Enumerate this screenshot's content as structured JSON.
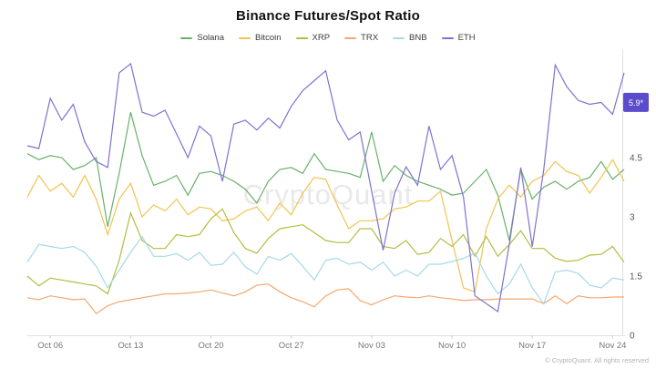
{
  "title": "Binance Futures/Spot Ratio",
  "watermark": "CryptoQuant",
  "footer": "© CryptoQuant. All rights reserved",
  "badge": {
    "label": "5.9*",
    "value": 5.9,
    "color": "#5b4ccc",
    "text_color": "#ffffff"
  },
  "axis_color": "#e0e0e0",
  "tick_text_color": "#777777",
  "chart_data": {
    "type": "line",
    "title": "Binance Futures/Spot Ratio",
    "xlabel": "",
    "ylabel": "",
    "ylim": [
      0,
      7.0
    ],
    "grid": false,
    "legend_position": "top-center",
    "y_ticks": [
      0,
      1.5,
      3,
      4.5
    ],
    "y_tick_labels": [
      "0",
      "1.5",
      "3",
      "4.5"
    ],
    "x": [
      "Oct 04",
      "Oct 05",
      "Oct 06",
      "Oct 07",
      "Oct 08",
      "Oct 09",
      "Oct 10",
      "Oct 11",
      "Oct 12",
      "Oct 13",
      "Oct 14",
      "Oct 15",
      "Oct 16",
      "Oct 17",
      "Oct 18",
      "Oct 19",
      "Oct 20",
      "Oct 21",
      "Oct 22",
      "Oct 23",
      "Oct 24",
      "Oct 25",
      "Oct 26",
      "Oct 27",
      "Oct 28",
      "Oct 29",
      "Oct 30",
      "Oct 31",
      "Nov 01",
      "Nov 02",
      "Nov 03",
      "Nov 04",
      "Nov 05",
      "Nov 06",
      "Nov 07",
      "Nov 08",
      "Nov 09",
      "Nov 10",
      "Nov 11",
      "Nov 12",
      "Nov 13",
      "Nov 14",
      "Nov 15",
      "Nov 16",
      "Nov 17",
      "Nov 18",
      "Nov 19",
      "Nov 20",
      "Nov 21",
      "Nov 22",
      "Nov 23",
      "Nov 24",
      "Nov 25"
    ],
    "tick_indices": [
      2,
      9,
      16,
      23,
      30,
      37,
      44,
      51
    ],
    "series": [
      {
        "name": "Solana",
        "color": "#67b168",
        "values": [
          4.6,
          4.45,
          4.55,
          4.5,
          4.2,
          4.3,
          4.5,
          2.75,
          4.1,
          5.65,
          4.55,
          3.8,
          3.9,
          4.05,
          3.55,
          4.1,
          4.15,
          4.05,
          3.9,
          3.7,
          3.35,
          3.9,
          4.2,
          4.25,
          4.1,
          4.6,
          4.2,
          4.15,
          4.1,
          4.0,
          5.15,
          3.9,
          4.3,
          4.05,
          3.9,
          3.8,
          3.7,
          3.55,
          3.6,
          3.9,
          4.2,
          3.55,
          2.4,
          4.2,
          3.45,
          3.75,
          3.9,
          3.7,
          3.9,
          4.0,
          4.4,
          3.95,
          4.2
        ]
      },
      {
        "name": "Bitcoin",
        "color": "#f1c350",
        "values": [
          3.5,
          4.05,
          3.65,
          3.85,
          3.5,
          4.05,
          3.45,
          2.55,
          3.45,
          3.85,
          3.0,
          3.3,
          3.15,
          3.45,
          3.05,
          3.25,
          3.2,
          2.9,
          2.95,
          3.15,
          3.25,
          2.9,
          3.35,
          3.05,
          3.6,
          4.0,
          3.95,
          3.3,
          2.7,
          2.9,
          2.9,
          2.95,
          3.2,
          3.25,
          3.4,
          3.4,
          3.65,
          2.4,
          1.2,
          1.1,
          2.7,
          3.45,
          3.8,
          3.5,
          3.9,
          4.05,
          4.4,
          4.15,
          4.05,
          3.6,
          4.0,
          4.45,
          3.9
        ]
      },
      {
        "name": "XRP",
        "color": "#b3bc41",
        "values": [
          1.5,
          1.25,
          1.45,
          1.4,
          1.35,
          1.3,
          1.25,
          1.05,
          1.9,
          3.1,
          2.4,
          2.2,
          2.2,
          2.55,
          2.5,
          2.55,
          2.95,
          3.2,
          2.6,
          2.2,
          2.08,
          2.45,
          2.7,
          2.75,
          2.8,
          2.6,
          2.4,
          2.35,
          2.35,
          2.7,
          2.7,
          2.25,
          2.2,
          2.4,
          2.05,
          2.1,
          2.45,
          2.25,
          2.55,
          2.0,
          2.5,
          2.0,
          2.3,
          2.65,
          2.2,
          2.2,
          1.95,
          1.87,
          1.9,
          2.03,
          2.05,
          2.25,
          1.85
        ]
      },
      {
        "name": "TRX",
        "color": "#f3a96e",
        "values": [
          0.95,
          0.9,
          1.0,
          0.95,
          0.9,
          0.92,
          0.55,
          0.75,
          0.85,
          0.9,
          0.95,
          1.0,
          1.05,
          1.05,
          1.07,
          1.1,
          1.15,
          1.07,
          1.0,
          1.1,
          1.27,
          1.3,
          1.1,
          0.95,
          0.85,
          0.72,
          1.0,
          1.15,
          1.18,
          0.88,
          0.77,
          0.9,
          1.0,
          0.97,
          0.95,
          1.0,
          0.95,
          0.92,
          0.88,
          0.9,
          0.9,
          0.92,
          0.92,
          0.92,
          0.92,
          0.8,
          1.0,
          0.8,
          1.0,
          0.95,
          0.95,
          0.97,
          0.97
        ]
      },
      {
        "name": "BNB",
        "color": "#a6d9e8",
        "values": [
          1.85,
          2.3,
          2.25,
          2.2,
          2.25,
          2.1,
          1.75,
          1.2,
          1.65,
          2.1,
          2.5,
          2.0,
          2.0,
          2.07,
          1.9,
          2.1,
          1.77,
          1.8,
          2.1,
          1.73,
          1.55,
          2.0,
          1.9,
          2.07,
          1.75,
          1.4,
          1.9,
          1.95,
          1.8,
          1.85,
          1.65,
          1.85,
          1.5,
          1.65,
          1.5,
          1.8,
          1.8,
          1.87,
          1.95,
          2.08,
          1.5,
          1.05,
          1.3,
          1.8,
          1.2,
          0.8,
          1.6,
          1.65,
          1.57,
          1.27,
          1.2,
          1.45,
          1.4
        ]
      },
      {
        "name": "ETH",
        "color": "#7e72d2",
        "values": [
          4.8,
          4.73,
          6.0,
          5.45,
          5.85,
          4.9,
          4.4,
          4.25,
          6.65,
          6.88,
          5.65,
          5.55,
          5.7,
          5.1,
          4.5,
          5.3,
          5.05,
          3.9,
          5.35,
          5.45,
          5.2,
          5.5,
          5.25,
          5.8,
          6.2,
          6.45,
          6.7,
          5.45,
          4.95,
          5.15,
          3.65,
          2.15,
          3.6,
          4.27,
          3.8,
          5.3,
          4.2,
          4.55,
          3.5,
          1.0,
          0.8,
          0.6,
          2.3,
          4.25,
          2.25,
          4.2,
          6.85,
          6.3,
          5.95,
          5.85,
          5.9,
          5.6,
          6.65
        ]
      }
    ]
  }
}
